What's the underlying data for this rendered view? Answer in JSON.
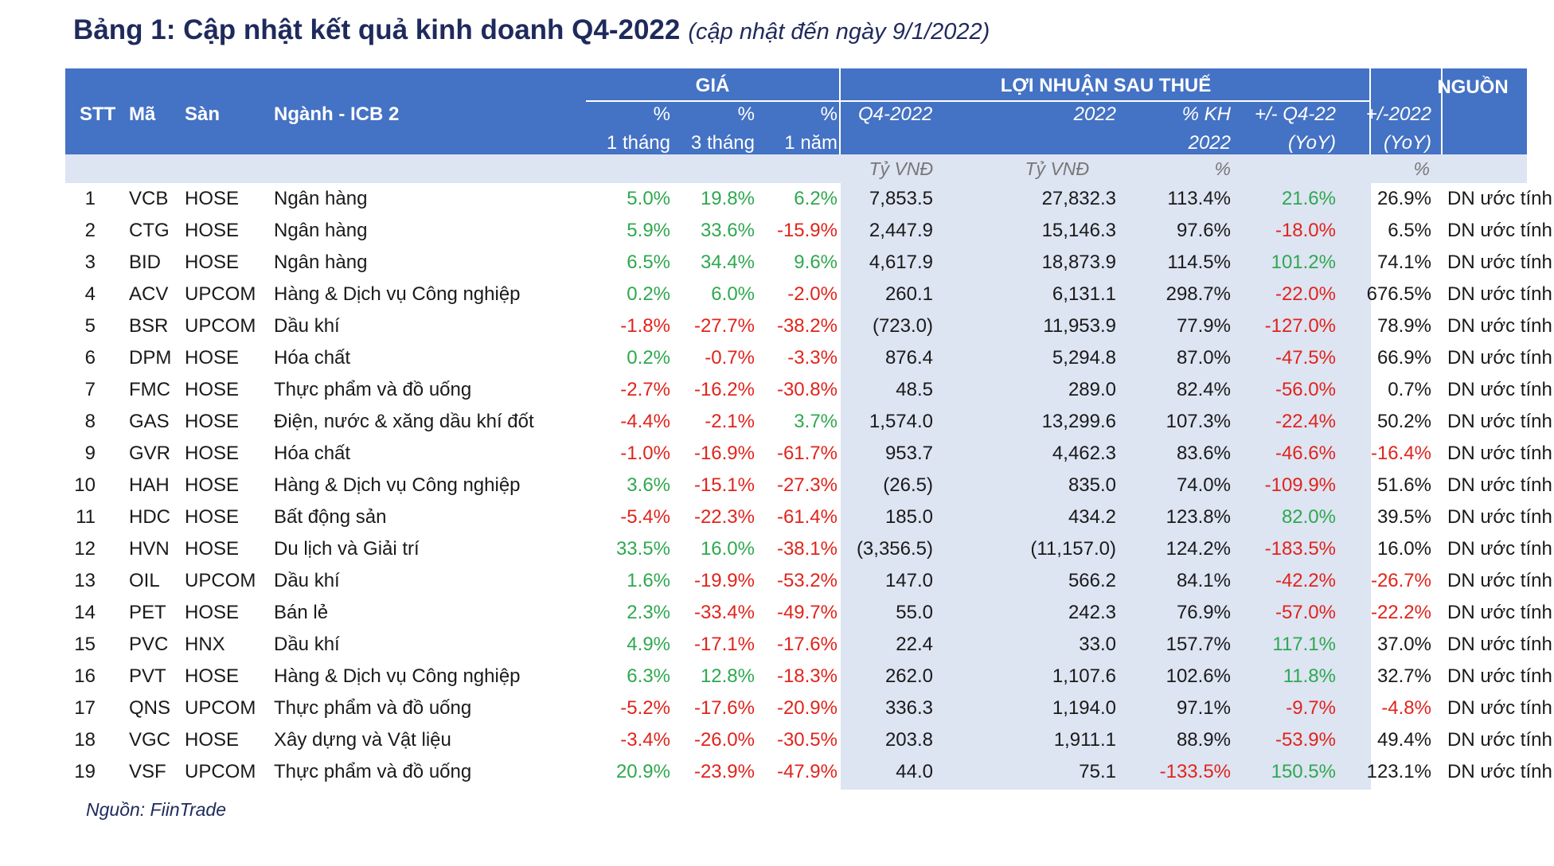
{
  "title": {
    "main": "Bảng 1: Cập nhật kết quả kinh doanh Q4-2022",
    "sub": "(cập nhật đến ngày 9/1/2022)"
  },
  "headers": {
    "stt": "STT",
    "ma": "Mã",
    "san": "Sàn",
    "nganh": "Ngành - ICB 2",
    "group_gia": "GIÁ",
    "group_loinhuan": "LỢI NHUẬN SAU THUẾ",
    "nguon": "NGUỒN",
    "gia_1t_a": "%",
    "gia_1t_b": "1 tháng",
    "gia_3t_a": "%",
    "gia_3t_b": "3 tháng",
    "gia_1n_a": "%",
    "gia_1n_b": "1 năm",
    "q4": "Q4-2022",
    "y2022": "2022",
    "kh_a": "% KH",
    "kh_b": "2022",
    "yoy_q4_a": "+/- Q4-22",
    "yoy_q4_b": "(YoY)",
    "yoy_y_a": "+/-2022",
    "yoy_y_b": "(YoY)"
  },
  "units": {
    "q4": "Tỷ VNĐ",
    "y2022": "Tỷ VNĐ",
    "kh": "%",
    "yoy_y": "%"
  },
  "rows": [
    {
      "stt": "1",
      "ma": "VCB",
      "san": "HOSE",
      "nganh": "Ngân hàng",
      "p1m": "5.0%",
      "p3m": "19.8%",
      "p1y": "6.2%",
      "q4": "7,853.5",
      "y": "27,832.3",
      "kh": "113.4%",
      "yq4": "21.6%",
      "yy": "26.9%",
      "nguon": "DN ước tính"
    },
    {
      "stt": "2",
      "ma": "CTG",
      "san": "HOSE",
      "nganh": "Ngân hàng",
      "p1m": "5.9%",
      "p3m": "33.6%",
      "p1y": "-15.9%",
      "q4": "2,447.9",
      "y": "15,146.3",
      "kh": "97.6%",
      "yq4": "-18.0%",
      "yy": "6.5%",
      "nguon": "DN ước tính"
    },
    {
      "stt": "3",
      "ma": "BID",
      "san": "HOSE",
      "nganh": "Ngân hàng",
      "p1m": "6.5%",
      "p3m": "34.4%",
      "p1y": "9.6%",
      "q4": "4,617.9",
      "y": "18,873.9",
      "kh": "114.5%",
      "yq4": "101.2%",
      "yy": "74.1%",
      "nguon": "DN ước tính"
    },
    {
      "stt": "4",
      "ma": "ACV",
      "san": "UPCOM",
      "nganh": "Hàng & Dịch vụ Công nghiệp",
      "p1m": "0.2%",
      "p3m": "6.0%",
      "p1y": "-2.0%",
      "q4": "260.1",
      "y": "6,131.1",
      "kh": "298.7%",
      "yq4": "-22.0%",
      "yy": "676.5%",
      "nguon": "DN ước tính"
    },
    {
      "stt": "5",
      "ma": "BSR",
      "san": "UPCOM",
      "nganh": "Dầu khí",
      "p1m": "-1.8%",
      "p3m": "-27.7%",
      "p1y": "-38.2%",
      "q4": "(723.0)",
      "y": "11,953.9",
      "kh": "77.9%",
      "yq4": "-127.0%",
      "yy": "78.9%",
      "nguon": "DN ước tính"
    },
    {
      "stt": "6",
      "ma": "DPM",
      "san": "HOSE",
      "nganh": "Hóa chất",
      "p1m": "0.2%",
      "p3m": "-0.7%",
      "p1y": "-3.3%",
      "q4": "876.4",
      "y": "5,294.8",
      "kh": "87.0%",
      "yq4": "-47.5%",
      "yy": "66.9%",
      "nguon": "DN ước tính"
    },
    {
      "stt": "7",
      "ma": "FMC",
      "san": "HOSE",
      "nganh": "Thực phẩm và đồ uống",
      "p1m": "-2.7%",
      "p3m": "-16.2%",
      "p1y": "-30.8%",
      "q4": "48.5",
      "y": "289.0",
      "kh": "82.4%",
      "yq4": "-56.0%",
      "yy": "0.7%",
      "nguon": "DN ước tính"
    },
    {
      "stt": "8",
      "ma": "GAS",
      "san": "HOSE",
      "nganh": "Điện, nước & xăng dầu khí đốt",
      "p1m": "-4.4%",
      "p3m": "-2.1%",
      "p1y": "3.7%",
      "q4": "1,574.0",
      "y": "13,299.6",
      "kh": "107.3%",
      "yq4": "-22.4%",
      "yy": "50.2%",
      "nguon": "DN ước tính"
    },
    {
      "stt": "9",
      "ma": "GVR",
      "san": "HOSE",
      "nganh": "Hóa chất",
      "p1m": "-1.0%",
      "p3m": "-16.9%",
      "p1y": "-61.7%",
      "q4": "953.7",
      "y": "4,462.3",
      "kh": "83.6%",
      "yq4": "-46.6%",
      "yy": "-16.4%",
      "nguon": "DN ước tính"
    },
    {
      "stt": "10",
      "ma": "HAH",
      "san": "HOSE",
      "nganh": "Hàng & Dịch vụ Công nghiệp",
      "p1m": "3.6%",
      "p3m": "-15.1%",
      "p1y": "-27.3%",
      "q4": "(26.5)",
      "y": "835.0",
      "kh": "74.0%",
      "yq4": "-109.9%",
      "yy": "51.6%",
      "nguon": "DN ước tính"
    },
    {
      "stt": "11",
      "ma": "HDC",
      "san": "HOSE",
      "nganh": "Bất động sản",
      "p1m": "-5.4%",
      "p3m": "-22.3%",
      "p1y": "-61.4%",
      "q4": "185.0",
      "y": "434.2",
      "kh": "123.8%",
      "yq4": "82.0%",
      "yy": "39.5%",
      "nguon": "DN ước tính"
    },
    {
      "stt": "12",
      "ma": "HVN",
      "san": "HOSE",
      "nganh": "Du lịch và Giải trí",
      "p1m": "33.5%",
      "p3m": "16.0%",
      "p1y": "-38.1%",
      "q4": "(3,356.5)",
      "y": "(11,157.0)",
      "kh": "124.2%",
      "yq4": "-183.5%",
      "yy": "16.0%",
      "nguon": "DN ước tính"
    },
    {
      "stt": "13",
      "ma": "OIL",
      "san": "UPCOM",
      "nganh": "Dầu khí",
      "p1m": "1.6%",
      "p3m": "-19.9%",
      "p1y": "-53.2%",
      "q4": "147.0",
      "y": "566.2",
      "kh": "84.1%",
      "yq4": "-42.2%",
      "yy": "-26.7%",
      "nguon": "DN ước tính"
    },
    {
      "stt": "14",
      "ma": "PET",
      "san": "HOSE",
      "nganh": "Bán lẻ",
      "p1m": "2.3%",
      "p3m": "-33.4%",
      "p1y": "-49.7%",
      "q4": "55.0",
      "y": "242.3",
      "kh": "76.9%",
      "yq4": "-57.0%",
      "yy": "-22.2%",
      "nguon": "DN ước tính"
    },
    {
      "stt": "15",
      "ma": "PVC",
      "san": "HNX",
      "nganh": "Dầu khí",
      "p1m": "4.9%",
      "p3m": "-17.1%",
      "p1y": "-17.6%",
      "q4": "22.4",
      "y": "33.0",
      "kh": "157.7%",
      "yq4": "117.1%",
      "yy": "37.0%",
      "nguon": "DN ước tính"
    },
    {
      "stt": "16",
      "ma": "PVT",
      "san": "HOSE",
      "nganh": "Hàng & Dịch vụ Công nghiệp",
      "p1m": "6.3%",
      "p3m": "12.8%",
      "p1y": "-18.3%",
      "q4": "262.0",
      "y": "1,107.6",
      "kh": "102.6%",
      "yq4": "11.8%",
      "yy": "32.7%",
      "nguon": "DN ước tính"
    },
    {
      "stt": "17",
      "ma": "QNS",
      "san": "UPCOM",
      "nganh": "Thực phẩm và đồ uống",
      "p1m": "-5.2%",
      "p3m": "-17.6%",
      "p1y": "-20.9%",
      "q4": "336.3",
      "y": "1,194.0",
      "kh": "97.1%",
      "yq4": "-9.7%",
      "yy": "-4.8%",
      "nguon": "DN ước tính"
    },
    {
      "stt": "18",
      "ma": "VGC",
      "san": "HOSE",
      "nganh": "Xây dựng và Vật liệu",
      "p1m": "-3.4%",
      "p3m": "-26.0%",
      "p1y": "-30.5%",
      "q4": "203.8",
      "y": "1,911.1",
      "kh": "88.9%",
      "yq4": "-53.9%",
      "yy": "49.4%",
      "nguon": "DN ước tính"
    },
    {
      "stt": "19",
      "ma": "VSF",
      "san": "UPCOM",
      "nganh": "Thực phẩm và đồ uống",
      "p1m": "20.9%",
      "p3m": "-23.9%",
      "p1y": "-47.9%",
      "q4": "44.0",
      "y": "75.1",
      "kh": "-133.5%",
      "yq4": "150.5%",
      "yy": "123.1%",
      "nguon": "DN ước tính"
    }
  ],
  "source": "Nguồn: FiinTrade",
  "colors": {
    "header_bg": "#4472c4",
    "shade": "#dde4f2",
    "positive": "#2fa84f",
    "negative": "#e0241c",
    "title": "#1f2a5c"
  }
}
